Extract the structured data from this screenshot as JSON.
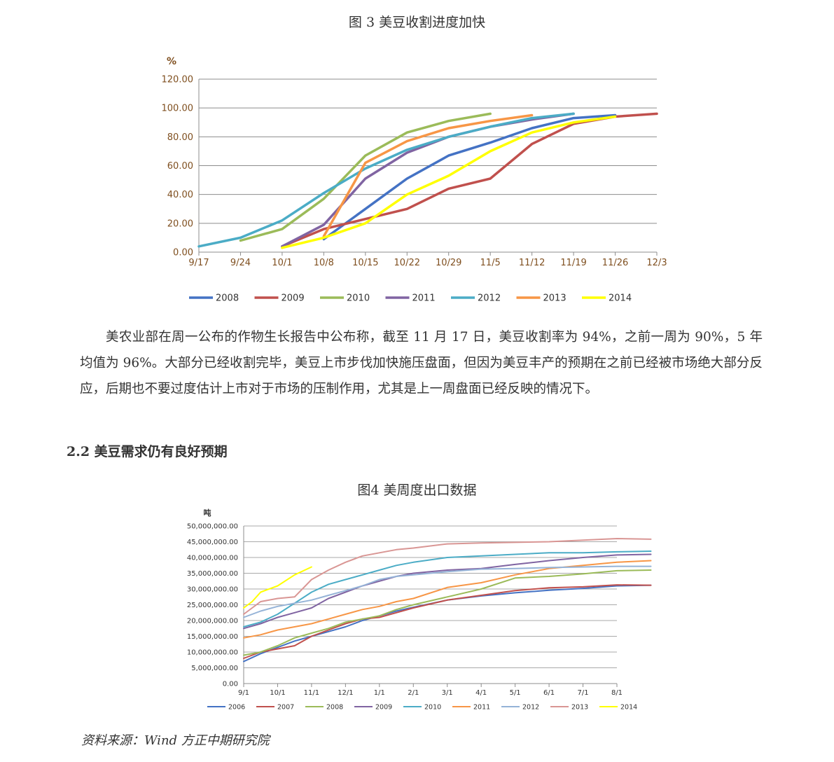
{
  "figure3_caption": "图 3 美豆收割进度加快",
  "figure4_caption": "图4 美周度出口数据",
  "paragraph": "美农业部在周一公布的作物生长报告中公布称，截至 11 月 17 日，美豆收割率为 94%，之前一周为 90%，5 年均值为 96%。大部分已经收割完毕，美豆上市步伐加快施压盘面，但因为美豆丰产的预期在之前已经被市场绝大部分反应，后期也不要过度估计上市对于市场的压制作用，尤其是上一周盘面已经反映的情况下。",
  "section_heading": "2.2 美豆需求仍有良好预期",
  "source": "资料来源：Wind 方正中期研究院",
  "chart_data": [
    {
      "type": "line",
      "title": "",
      "ylabel": "%",
      "xlabel": "",
      "ylim": [
        0,
        120
      ],
      "yticks": [
        "0.00",
        "20.00",
        "40.00",
        "60.00",
        "80.00",
        "100.00",
        "120.00"
      ],
      "categories": [
        "9/17",
        "9/24",
        "10/1",
        "10/8",
        "10/15",
        "10/22",
        "10/29",
        "11/5",
        "11/12",
        "11/19",
        "11/26",
        "12/3"
      ],
      "grid": true,
      "legend": "bottom",
      "series": [
        {
          "name": "2008",
          "color": "#4472c4",
          "points": [
            [
              3,
              9
            ],
            [
              4,
              30
            ],
            [
              5,
              51
            ],
            [
              6,
              67
            ],
            [
              7,
              76
            ],
            [
              8,
              86
            ],
            [
              9,
              93
            ],
            [
              10,
              95
            ]
          ]
        },
        {
          "name": "2009",
          "color": "#c0504d",
          "points": [
            [
              2,
              4
            ],
            [
              3,
              16
            ],
            [
              4,
              23
            ],
            [
              5,
              30
            ],
            [
              6,
              44
            ],
            [
              7,
              51
            ],
            [
              8,
              75
            ],
            [
              9,
              89
            ],
            [
              10,
              94
            ],
            [
              11,
              96
            ]
          ]
        },
        {
          "name": "2010",
          "color": "#9bbb59",
          "points": [
            [
              1,
              8
            ],
            [
              2,
              16
            ],
            [
              3,
              37
            ],
            [
              4,
              67
            ],
            [
              5,
              83
            ],
            [
              6,
              91
            ],
            [
              7,
              96
            ]
          ]
        },
        {
          "name": "2011",
          "color": "#8064a2",
          "points": [
            [
              2,
              4
            ],
            [
              3,
              19
            ],
            [
              4,
              51
            ],
            [
              5,
              69
            ],
            [
              6,
              80
            ],
            [
              7,
              87
            ],
            [
              8,
              92
            ],
            [
              9,
              96
            ]
          ]
        },
        {
          "name": "2012",
          "color": "#4bacc6",
          "points": [
            [
              0,
              4
            ],
            [
              1,
              10
            ],
            [
              2,
              22
            ],
            [
              3,
              41
            ],
            [
              4,
              58
            ],
            [
              5,
              71
            ],
            [
              6,
              80
            ],
            [
              7,
              87
            ],
            [
              8,
              93
            ],
            [
              9,
              96
            ]
          ]
        },
        {
          "name": "2013",
          "color": "#f79646",
          "points": [
            [
              3,
              11
            ],
            [
              4,
              62
            ],
            [
              5,
              77
            ],
            [
              6,
              86
            ],
            [
              7,
              91
            ],
            [
              8,
              95
            ]
          ]
        },
        {
          "name": "2014",
          "color": "#ffff00",
          "points": [
            [
              2,
              3
            ],
            [
              3,
              10
            ],
            [
              4,
              20
            ],
            [
              5,
              40
            ],
            [
              6,
              53
            ],
            [
              7,
              70
            ],
            [
              8,
              83
            ],
            [
              9,
              90
            ],
            [
              10,
              94
            ]
          ]
        }
      ]
    },
    {
      "type": "line",
      "title": "",
      "ylabel": "吨",
      "xlabel": "",
      "ylim": [
        0,
        50000000
      ],
      "yticks": [
        "0.00",
        "5,000,000.00",
        "10,000,000.00",
        "15,000,000.00",
        "20,000,000.00",
        "25,000,000.00",
        "30,000,000.00",
        "35,000,000.00",
        "40,000,000.00",
        "45,000,000.00",
        "50,000,000.00"
      ],
      "categories": [
        "9/1",
        "10/1",
        "11/1",
        "12/1",
        "1/1",
        "2/1",
        "3/1",
        "4/1",
        "5/1",
        "6/1",
        "7/1",
        "8/1"
      ],
      "grid": true,
      "legend": "bottom",
      "series": [
        {
          "name": "2006",
          "color": "#4472c4",
          "points": [
            [
              0,
              7000000
            ],
            [
              0.5,
              9500000
            ],
            [
              1,
              11500000
            ],
            [
              1.5,
              13500000
            ],
            [
              2,
              15000000
            ],
            [
              2.5,
              16500000
            ],
            [
              3,
              18000000
            ],
            [
              3.5,
              20000000
            ],
            [
              4,
              21500000
            ],
            [
              4.5,
              23000000
            ],
            [
              5,
              24200000
            ],
            [
              6,
              26500000
            ],
            [
              7,
              27800000
            ],
            [
              8,
              28800000
            ],
            [
              9,
              29600000
            ],
            [
              10,
              30200000
            ],
            [
              11,
              31000000
            ],
            [
              12,
              31200000
            ]
          ]
        },
        {
          "name": "2007",
          "color": "#c0504d",
          "points": [
            [
              0,
              8000000
            ],
            [
              0.5,
              10000000
            ],
            [
              1,
              11000000
            ],
            [
              1.5,
              12000000
            ],
            [
              2,
              15000000
            ],
            [
              2.5,
              17000000
            ],
            [
              3,
              19000000
            ],
            [
              3.5,
              20500000
            ],
            [
              4,
              21000000
            ],
            [
              4.5,
              22500000
            ],
            [
              5,
              24000000
            ],
            [
              6,
              26500000
            ],
            [
              7,
              28000000
            ],
            [
              8,
              29500000
            ],
            [
              9,
              30400000
            ],
            [
              10,
              30700000
            ],
            [
              11,
              31300000
            ],
            [
              12,
              31200000
            ]
          ]
        },
        {
          "name": "2008",
          "color": "#9bbb59",
          "points": [
            [
              0,
              9000000
            ],
            [
              0.5,
              10000000
            ],
            [
              1,
              12000000
            ],
            [
              1.5,
              14500000
            ],
            [
              2,
              16000000
            ],
            [
              2.5,
              17500000
            ],
            [
              3,
              19500000
            ],
            [
              3.5,
              20500000
            ],
            [
              4,
              21500000
            ],
            [
              4.5,
              23500000
            ],
            [
              5,
              25000000
            ],
            [
              6,
              27500000
            ],
            [
              7,
              30000000
            ],
            [
              8,
              33500000
            ],
            [
              9,
              34000000
            ],
            [
              10,
              34800000
            ],
            [
              11,
              35800000
            ],
            [
              12,
              36000000
            ]
          ]
        },
        {
          "name": "2009",
          "color": "#8064a2",
          "points": [
            [
              0,
              17500000
            ],
            [
              0.5,
              19000000
            ],
            [
              1,
              21000000
            ],
            [
              1.5,
              22500000
            ],
            [
              2,
              24000000
            ],
            [
              2.5,
              27000000
            ],
            [
              3,
              29000000
            ],
            [
              3.5,
              31000000
            ],
            [
              4,
              32500000
            ],
            [
              4.5,
              34000000
            ],
            [
              5,
              35000000
            ],
            [
              6,
              36000000
            ],
            [
              7,
              36500000
            ],
            [
              8,
              37800000
            ],
            [
              9,
              39000000
            ],
            [
              10,
              40000000
            ],
            [
              11,
              40800000
            ],
            [
              12,
              41000000
            ]
          ]
        },
        {
          "name": "2010",
          "color": "#4bacc6",
          "points": [
            [
              0,
              18000000
            ],
            [
              0.5,
              19500000
            ],
            [
              1,
              22000000
            ],
            [
              1.5,
              25500000
            ],
            [
              2,
              29000000
            ],
            [
              2.5,
              31500000
            ],
            [
              3,
              33000000
            ],
            [
              3.5,
              34500000
            ],
            [
              4,
              36000000
            ],
            [
              4.5,
              37500000
            ],
            [
              5,
              38500000
            ],
            [
              6,
              40000000
            ],
            [
              7,
              40500000
            ],
            [
              8,
              41000000
            ],
            [
              9,
              41500000
            ],
            [
              10,
              41500000
            ],
            [
              11,
              41800000
            ],
            [
              12,
              42000000
            ]
          ]
        },
        {
          "name": "2011",
          "color": "#f79646",
          "points": [
            [
              0,
              14500000
            ],
            [
              0.5,
              15500000
            ],
            [
              1,
              17000000
            ],
            [
              1.5,
              18000000
            ],
            [
              2,
              19000000
            ],
            [
              2.5,
              20500000
            ],
            [
              3,
              22000000
            ],
            [
              3.5,
              23500000
            ],
            [
              4,
              24500000
            ],
            [
              4.5,
              26000000
            ],
            [
              5,
              27000000
            ],
            [
              6,
              30500000
            ],
            [
              7,
              32000000
            ],
            [
              8,
              34500000
            ],
            [
              9,
              36500000
            ],
            [
              10,
              37500000
            ],
            [
              11,
              38500000
            ],
            [
              12,
              39000000
            ]
          ]
        },
        {
          "name": "2012",
          "color": "#95b3d7",
          "points": [
            [
              0,
              21000000
            ],
            [
              0.5,
              23000000
            ],
            [
              1,
              24500000
            ],
            [
              1.5,
              25500000
            ],
            [
              2,
              26500000
            ],
            [
              2.5,
              28000000
            ],
            [
              3,
              29500000
            ],
            [
              3.5,
              31000000
            ],
            [
              4,
              33000000
            ],
            [
              4.5,
              34000000
            ],
            [
              5,
              34500000
            ],
            [
              6,
              35500000
            ],
            [
              7,
              36300000
            ],
            [
              8,
              36500000
            ],
            [
              9,
              36800000
            ],
            [
              10,
              37000000
            ],
            [
              11,
              37200000
            ],
            [
              12,
              37200000
            ]
          ]
        },
        {
          "name": "2013",
          "color": "#d99694",
          "points": [
            [
              0,
              22000000
            ],
            [
              0.5,
              26000000
            ],
            [
              1,
              27000000
            ],
            [
              1.5,
              27500000
            ],
            [
              2,
              33000000
            ],
            [
              2.5,
              36000000
            ],
            [
              3,
              38500000
            ],
            [
              3.5,
              40500000
            ],
            [
              4,
              41500000
            ],
            [
              4.5,
              42500000
            ],
            [
              5,
              43000000
            ],
            [
              6,
              44300000
            ],
            [
              7,
              44600000
            ],
            [
              8,
              44800000
            ],
            [
              9,
              45000000
            ],
            [
              10,
              45500000
            ],
            [
              11,
              46000000
            ],
            [
              12,
              45800000
            ]
          ]
        },
        {
          "name": "2014",
          "color": "#ffff00",
          "points": [
            [
              0,
              24000000
            ],
            [
              0.25,
              26000000
            ],
            [
              0.5,
              29000000
            ],
            [
              1,
              31000000
            ],
            [
              1.5,
              34500000
            ],
            [
              2,
              37000000
            ]
          ]
        }
      ]
    }
  ]
}
